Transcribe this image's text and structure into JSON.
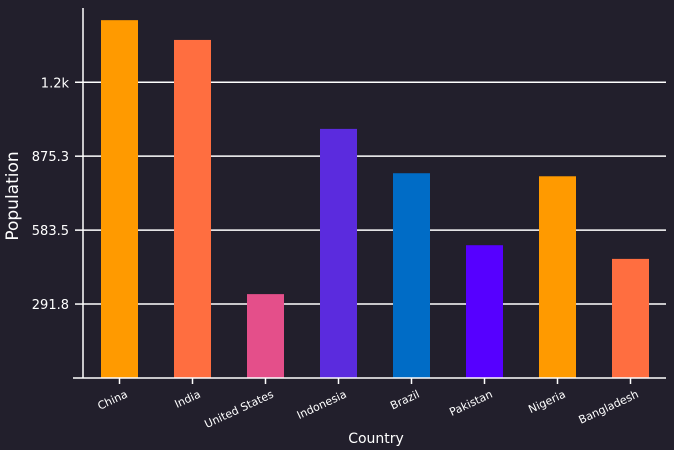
{
  "chart_data": {
    "type": "bar",
    "title": "",
    "xlabel": "Country",
    "ylabel": "Population",
    "categories": [
      "China",
      "India",
      "United States",
      "Indonesia",
      "Brazil",
      "Pakistan",
      "Nigeria",
      "Bangladesh"
    ],
    "values": [
      1412,
      1334,
      331,
      983,
      808,
      524,
      796,
      470
    ],
    "y_ticks": [
      291.8,
      583.5,
      875.3,
      1167
    ],
    "y_tick_labels": [
      "291.8",
      "583.5",
      "875.3",
      "1.2k"
    ],
    "ylim": [
      0,
      1460
    ],
    "grid": true,
    "colors": [
      "#ff9a00",
      "#ff6e40",
      "#e44f8a",
      "#5b2bde",
      "#006cc6",
      "#5600ff",
      "#ff9a00",
      "#ff6e40"
    ]
  }
}
